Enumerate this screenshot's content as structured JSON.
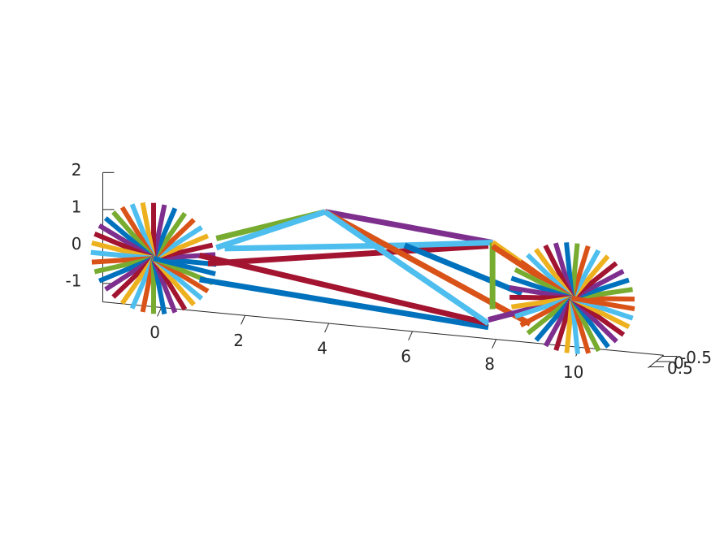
{
  "chart_data": {
    "type": "line",
    "title": "",
    "xlabel": "",
    "ylabel": "",
    "zlabel": "",
    "projection": "3d",
    "grid": false,
    "legend": "none",
    "x_ticks": [
      "0",
      "2",
      "4",
      "6",
      "8",
      "10"
    ],
    "y_ticks": [
      "-0.5",
      "0",
      "0.5"
    ],
    "z_ticks": [
      "-1",
      "0",
      "1",
      "2"
    ],
    "xlim": [
      -1.4,
      12
    ],
    "ylim": [
      -0.6,
      0.6
    ],
    "zlim": [
      -1.5,
      2
    ],
    "wheel_centers_xz": [
      [
        0,
        0
      ],
      [
        10,
        0
      ]
    ],
    "wheel_radius": 1.5,
    "spokes_per_wheel": 36,
    "frame_series": [
      {
        "color": "#77ac30",
        "x": [
          1.5,
          4.1
        ],
        "z": [
          0.7,
          1.7
        ]
      },
      {
        "color": "#4dbeee",
        "x": [
          1.5,
          4.1
        ],
        "z": [
          0.45,
          1.7
        ]
      },
      {
        "color": "#4dbeee",
        "x": [
          1.7,
          6.0
        ],
        "z": [
          0.45,
          1.0
        ]
      },
      {
        "color": "#a2142f",
        "x": [
          1.3,
          8.0
        ],
        "z": [
          0.0,
          1.2
        ]
      },
      {
        "color": "#0072bd",
        "x": [
          1.1,
          8.0
        ],
        "z": [
          -0.45,
          -1.0
        ]
      },
      {
        "color": "#a2142f",
        "x": [
          1.1,
          8.0
        ],
        "z": [
          0.2,
          -0.9
        ]
      },
      {
        "color": "#7e2f8e",
        "x": [
          4.1,
          8.1
        ],
        "z": [
          1.7,
          1.3
        ]
      },
      {
        "color": "#d95319",
        "x": [
          4.1,
          9.0
        ],
        "z": [
          1.7,
          -0.8
        ]
      },
      {
        "color": "#4dbeee",
        "x": [
          4.1,
          8.0
        ],
        "z": [
          1.7,
          -0.9
        ]
      },
      {
        "color": "#4dbeee",
        "x": [
          6.0,
          8.1
        ],
        "z": [
          1.0,
          1.3
        ]
      },
      {
        "color": "#0072bd",
        "x": [
          6.0,
          8.8
        ],
        "z": [
          1.0,
          0.0
        ]
      },
      {
        "color": "#77ac30",
        "x": [
          8.1,
          8.1
        ],
        "z": [
          1.3,
          -0.5
        ]
      },
      {
        "color": "#edb120",
        "x": [
          8.1,
          10.0
        ],
        "z": [
          1.3,
          0.0
        ]
      },
      {
        "color": "#d95319",
        "x": [
          8.1,
          10.0
        ],
        "z": [
          1.2,
          0.0
        ]
      },
      {
        "color": "#7e2f8e",
        "x": [
          8.0,
          10.0
        ],
        "z": [
          -0.8,
          0.0
        ]
      }
    ]
  },
  "palette": [
    "#0072bd",
    "#d95319",
    "#edb120",
    "#7e2f8e",
    "#77ac30",
    "#4dbeee",
    "#a2142f"
  ],
  "axis_color": "#262626"
}
